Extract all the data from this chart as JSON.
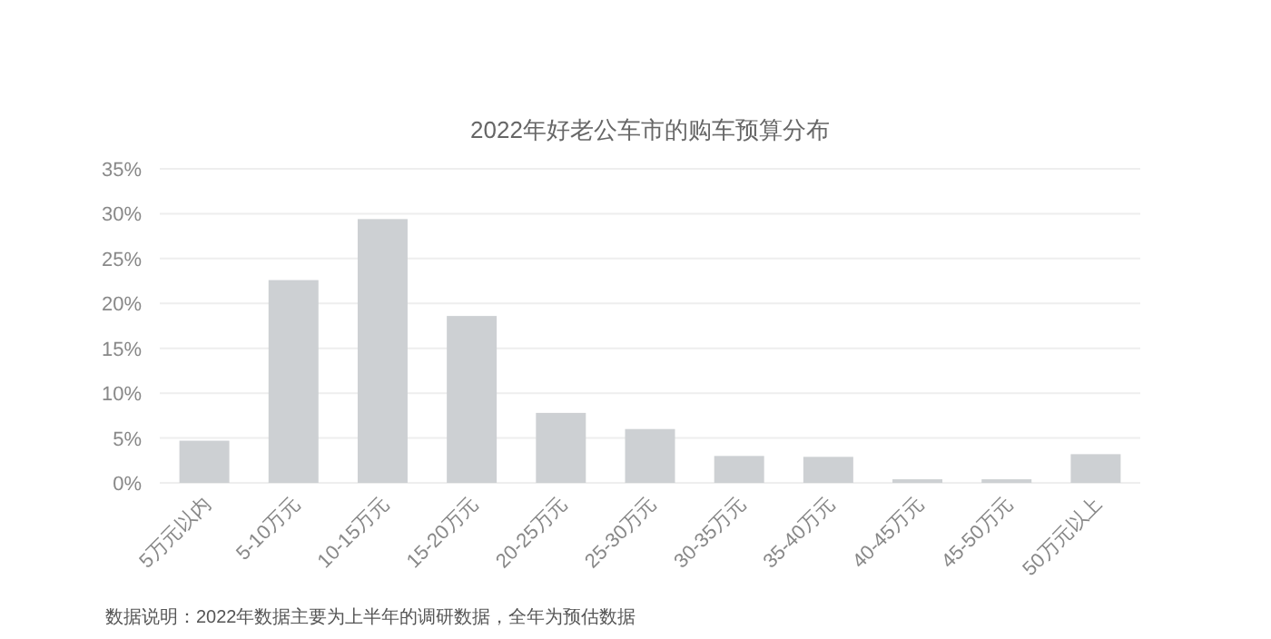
{
  "chart_data": {
    "type": "bar",
    "title": "2022年好老公车市的购车预算分布",
    "categories": [
      "5万元以内",
      "5-10万元",
      "10-15万元",
      "15-20万元",
      "20-25万元",
      "25-30万元",
      "30-35万元",
      "35-40万元",
      "40-45万元",
      "45-50万元",
      "50万元以上"
    ],
    "values": [
      4.7,
      22.6,
      29.4,
      18.6,
      7.8,
      6.0,
      3.0,
      2.9,
      0.4,
      0.4,
      3.2
    ],
    "color": "#cdd0d3",
    "ylim": [
      0,
      35
    ],
    "yticks": [
      {
        "value": 0,
        "label": "0%"
      },
      {
        "value": 5,
        "label": "5%"
      },
      {
        "value": 10,
        "label": "10%"
      },
      {
        "value": 15,
        "label": "15%"
      },
      {
        "value": 20,
        "label": "20%"
      },
      {
        "value": 25,
        "label": "25%"
      },
      {
        "value": 30,
        "label": "30%"
      },
      {
        "value": 35,
        "label": "35%"
      }
    ],
    "grid": "y",
    "annotations": [
      "数据说明：2022年数据主要为上半年的调研数据，全年为预估数据"
    ]
  }
}
